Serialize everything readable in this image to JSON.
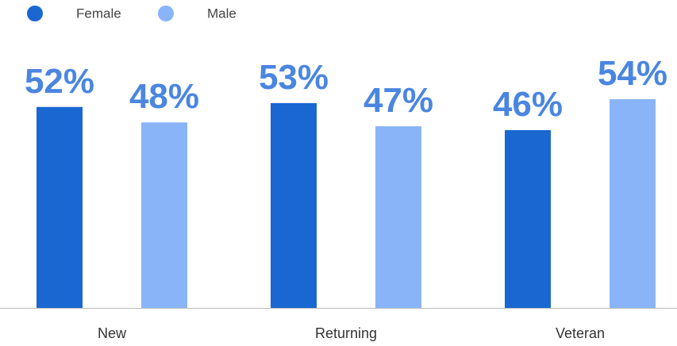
{
  "chart_data": {
    "type": "bar",
    "categories": [
      "New",
      "Returning",
      "Veteran"
    ],
    "series": [
      {
        "name": "Female",
        "color": "#1a67d2",
        "values": [
          52,
          53,
          46
        ],
        "value_labels": [
          "52%",
          "53%",
          "46%"
        ]
      },
      {
        "name": "Male",
        "color": "#8ab4f8",
        "values": [
          48,
          47,
          54
        ],
        "value_labels": [
          "48%",
          "47%",
          "54%"
        ]
      }
    ],
    "label_color": "#4a86e0"
  }
}
